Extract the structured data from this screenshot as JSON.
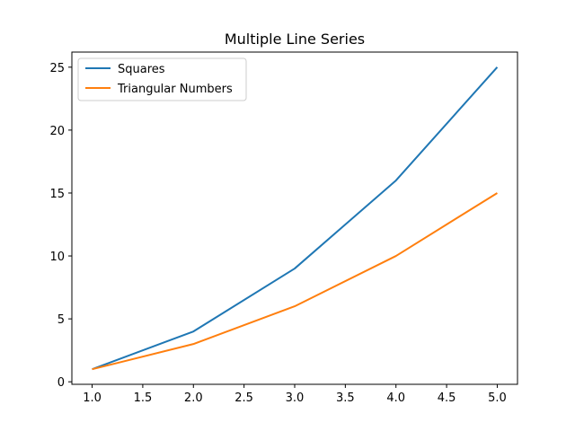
{
  "chart_data": {
    "type": "line",
    "title": "Multiple Line Series",
    "xlabel": "",
    "ylabel": "",
    "x": [
      1,
      2,
      3,
      4,
      5
    ],
    "xlim": [
      0.8,
      5.2
    ],
    "ylim": [
      -0.2,
      26.2
    ],
    "xticks": [
      1.0,
      1.5,
      2.0,
      2.5,
      3.0,
      3.5,
      4.0,
      4.5,
      5.0
    ],
    "xtick_labels": [
      "1.0",
      "1.5",
      "2.0",
      "2.5",
      "3.0",
      "3.5",
      "4.0",
      "4.5",
      "5.0"
    ],
    "yticks": [
      0,
      5,
      10,
      15,
      20,
      25
    ],
    "ytick_labels": [
      "0",
      "5",
      "10",
      "15",
      "20",
      "25"
    ],
    "grid": false,
    "legend_position": "top-left",
    "series": [
      {
        "name": "Squares",
        "values": [
          1,
          4,
          9,
          16,
          25
        ],
        "color": "#1f77b4"
      },
      {
        "name": "Triangular Numbers",
        "values": [
          1,
          3,
          6,
          10,
          15
        ],
        "color": "#ff7f0e"
      }
    ]
  }
}
